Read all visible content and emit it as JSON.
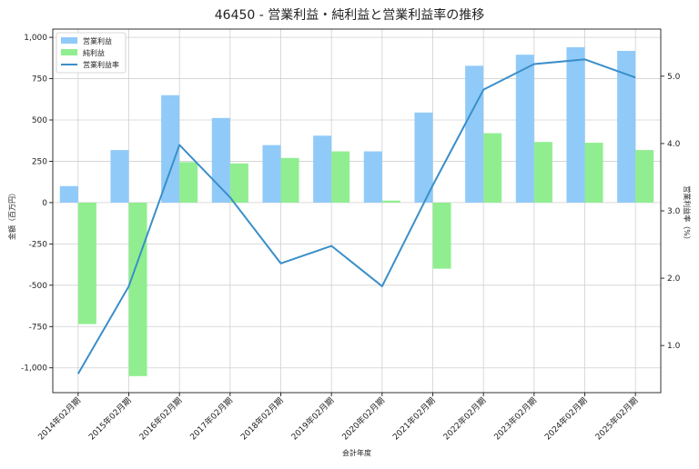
{
  "chart_data": {
    "type": "bar",
    "title": "46450 - 営業利益・純利益と営業利益率の推移",
    "xlabel": "会計年度",
    "ylabel": "金額（百万円）",
    "y2label": "営業利益率（%）",
    "categories": [
      "2014年02月期",
      "2015年02月期",
      "2016年02月期",
      "2017年02月期",
      "2018年02月期",
      "2019年02月期",
      "2020年02月期",
      "2021年02月期",
      "2022年02月期",
      "2023年02月期",
      "2024年02月期",
      "2025年02月期"
    ],
    "ylim": [
      -1150,
      1050
    ],
    "y2lim": [
      0.3,
      5.7
    ],
    "yticks": [
      -1000,
      -750,
      -500,
      -250,
      0,
      250,
      500,
      750,
      1000
    ],
    "ytick_labels": [
      "-1,000",
      "-750",
      "-500",
      "-250",
      "0",
      "250",
      "500",
      "750",
      "1,000"
    ],
    "y2ticks": [
      1.0,
      2.0,
      3.0,
      4.0,
      5.0
    ],
    "y2tick_labels": [
      "1.0",
      "2.0",
      "3.0",
      "4.0",
      "5.0"
    ],
    "grid": true,
    "legend_position": "top-left",
    "series": [
      {
        "name": "営業利益",
        "type": "bar",
        "axis": "left",
        "color": "#90caf9",
        "values": [
          100,
          318,
          650,
          512,
          348,
          405,
          310,
          545,
          828,
          895,
          940,
          918
        ]
      },
      {
        "name": "純利益",
        "type": "bar",
        "axis": "left",
        "color": "#90ee90",
        "values": [
          -735,
          -1050,
          245,
          237,
          270,
          310,
          12,
          -400,
          420,
          367,
          362,
          318
        ]
      },
      {
        "name": "営業利益率",
        "type": "line",
        "axis": "right",
        "color": "#3a8fc9",
        "values": [
          0.58,
          1.88,
          3.98,
          3.2,
          2.22,
          2.48,
          1.88,
          3.38,
          4.8,
          5.18,
          5.25,
          4.98
        ]
      }
    ]
  }
}
